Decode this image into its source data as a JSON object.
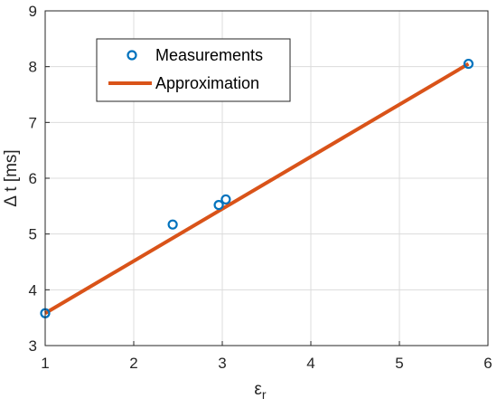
{
  "chart_data": {
    "type": "scatter",
    "xlabel_base": "ε",
    "xlabel_sub": "r",
    "ylabel": "Δ t [ms]",
    "xlim": [
      1,
      6
    ],
    "ylim": [
      3,
      9
    ],
    "xticks": [
      1,
      2,
      3,
      4,
      5,
      6
    ],
    "yticks": [
      3,
      4,
      5,
      6,
      7,
      8,
      9
    ],
    "grid": true,
    "legend_position": "top-left",
    "series": [
      {
        "name": "Measurements",
        "kind": "markers",
        "color": "#0072BD",
        "points": [
          {
            "x": 1.0,
            "y": 3.58
          },
          {
            "x": 2.44,
            "y": 5.17
          },
          {
            "x": 2.96,
            "y": 5.52
          },
          {
            "x": 3.04,
            "y": 5.62
          },
          {
            "x": 5.78,
            "y": 8.05
          }
        ]
      },
      {
        "name": "Approximation",
        "kind": "line",
        "color": "#D95319",
        "points": [
          {
            "x": 1.0,
            "y": 3.58
          },
          {
            "x": 5.78,
            "y": 8.05
          }
        ]
      }
    ]
  }
}
